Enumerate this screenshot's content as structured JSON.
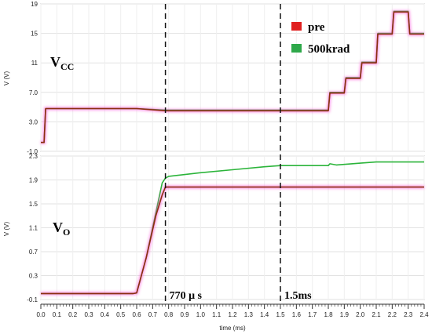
{
  "chart_data": [
    {
      "type": "line",
      "panel": "top",
      "ylabel": "V (V)",
      "ylim": [
        -1.0,
        19
      ],
      "yticks": [
        "19",
        "15",
        "11",
        "7.0",
        "3.0",
        "-1.0"
      ],
      "ytick_values": [
        19,
        15,
        11,
        7,
        3,
        -1
      ],
      "label_main": "V",
      "label_sub": "CC",
      "series": [
        {
          "name": "pre",
          "color": "#8b2e0f",
          "glow": "#ff3bd0",
          "x": [
            0.0,
            0.02,
            0.03,
            0.6,
            0.78,
            1.8,
            1.81,
            1.9,
            1.91,
            2.0,
            2.01,
            2.1,
            2.11,
            2.2,
            2.21,
            2.3,
            2.31,
            2.4
          ],
          "y": [
            0.2,
            0.2,
            4.8,
            4.8,
            4.5,
            4.5,
            6.9,
            6.9,
            8.9,
            8.9,
            11.0,
            11.0,
            14.9,
            14.9,
            17.9,
            17.9,
            14.9,
            14.9
          ]
        },
        {
          "name": "500krad",
          "color": "#2bb43a",
          "x": [
            0.0,
            0.02,
            0.03,
            0.6,
            0.78,
            1.8,
            1.81,
            1.9,
            1.91,
            2.0,
            2.01,
            2.1,
            2.11,
            2.2,
            2.21,
            2.3,
            2.31,
            2.4
          ],
          "y": [
            0.2,
            0.2,
            4.8,
            4.8,
            4.6,
            4.6,
            7.0,
            7.0,
            9.0,
            9.0,
            11.1,
            11.1,
            15.0,
            15.0,
            18.0,
            18.0,
            15.0,
            15.0
          ]
        }
      ]
    },
    {
      "type": "line",
      "panel": "bottom",
      "ylabel": "V (V)",
      "ylim": [
        -0.1,
        2.3
      ],
      "yticks": [
        "2.3",
        "1.9",
        "1.5",
        "1.1",
        "0.7",
        "0.3",
        "-0.1"
      ],
      "ytick_values": [
        2.3,
        1.9,
        1.5,
        1.1,
        0.7,
        0.3,
        -0.1
      ],
      "label_main": "V",
      "label_sub": "O",
      "series": [
        {
          "name": "pre",
          "color": "#8b2e0f",
          "glow": "#ff3bd0",
          "x": [
            0.0,
            0.58,
            0.6,
            0.66,
            0.72,
            0.76,
            0.78,
            1.5,
            1.8,
            2.4
          ],
          "y": [
            0.0,
            0.0,
            0.01,
            0.6,
            1.3,
            1.65,
            1.78,
            1.78,
            1.78,
            1.78
          ]
        },
        {
          "name": "500krad",
          "color": "#2bb43a",
          "x": [
            0.0,
            0.58,
            0.6,
            0.66,
            0.72,
            0.76,
            0.78,
            0.8,
            1.0,
            1.2,
            1.4,
            1.5,
            1.8,
            1.81,
            1.85,
            2.0,
            2.1,
            2.4
          ],
          "y": [
            0.0,
            0.0,
            0.01,
            0.6,
            1.35,
            1.85,
            1.93,
            1.96,
            2.02,
            2.07,
            2.12,
            2.14,
            2.14,
            2.17,
            2.15,
            2.18,
            2.2,
            2.2
          ]
        }
      ]
    }
  ],
  "xaxis": {
    "label": "time (ms)",
    "range": [
      0.0,
      2.4
    ],
    "ticks": [
      "0.0",
      "0.1",
      "0.2",
      "0.3",
      "0.4",
      "0.5",
      "0.6",
      "0.7",
      "0.8",
      "0.9",
      "1.0",
      "1.1",
      "1.2",
      "1.3",
      "1.4",
      "1.5",
      "1.6",
      "1.7",
      "1.8",
      "1.9",
      "2.0",
      "2.1",
      "2.2",
      "2.3",
      "2.4"
    ]
  },
  "legend": {
    "placement": "top-right",
    "items": [
      {
        "name": "pre",
        "color": "#e02020"
      },
      {
        "name": "500krad",
        "color": "#2ea84a"
      }
    ]
  },
  "markers": [
    {
      "x": 0.78,
      "label": "770 μ s"
    },
    {
      "x": 1.5,
      "label": "1.5ms"
    }
  ]
}
